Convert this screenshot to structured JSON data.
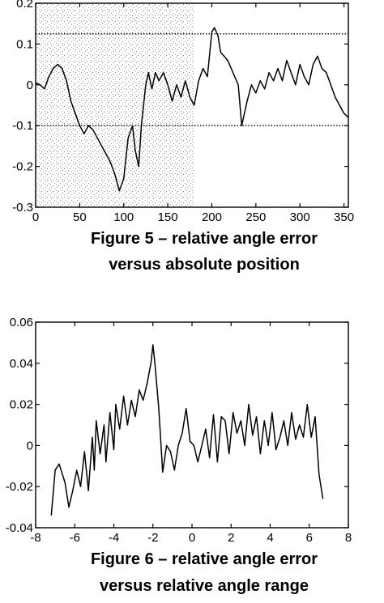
{
  "chart_data": [
    {
      "type": "line",
      "title": "Figure 5 – relative angle error",
      "subtitle": "versus absolute position",
      "xlabel": "",
      "ylabel": "",
      "xlim": [
        0,
        355
      ],
      "ylim": [
        -0.3,
        0.2
      ],
      "xticks": [
        0,
        50,
        100,
        150,
        200,
        250,
        300,
        350
      ],
      "yticks": [
        0.2,
        0.1,
        0,
        -0.1,
        -0.2,
        -0.3
      ],
      "xtick_labels": [
        "0",
        "50",
        "100",
        "150",
        "200",
        "250",
        "300",
        "350"
      ],
      "ytick_labels": [
        "0.2",
        "0.1",
        "0",
        "-0.1",
        "-0.2",
        "-0.3"
      ],
      "shaded_region": [
        0,
        180
      ],
      "reference_lines": [
        0.125,
        -0.1
      ],
      "grid": false,
      "series": [
        {
          "x": [
            0,
            5,
            10,
            15,
            20,
            25,
            30,
            35,
            40,
            45,
            50,
            55,
            60,
            65,
            70,
            75,
            80,
            85,
            90,
            95,
            100,
            105,
            110,
            113,
            117,
            120,
            125,
            128,
            132,
            136,
            140,
            145,
            150,
            155,
            160,
            165,
            170,
            175,
            180,
            185,
            190,
            195,
            200,
            203,
            207,
            210,
            214,
            218,
            222,
            226,
            230,
            234,
            240,
            245,
            250,
            255,
            260,
            265,
            270,
            275,
            280,
            285,
            290,
            295,
            300,
            305,
            310,
            315,
            320,
            325,
            330,
            335,
            340,
            345,
            350,
            355
          ],
          "values": [
            0.005,
            0.0,
            -0.01,
            0.02,
            0.04,
            0.05,
            0.04,
            0.01,
            -0.04,
            -0.07,
            -0.1,
            -0.12,
            -0.1,
            -0.11,
            -0.13,
            -0.15,
            -0.17,
            -0.19,
            -0.22,
            -0.26,
            -0.23,
            -0.13,
            -0.1,
            -0.16,
            -0.2,
            -0.1,
            0.0,
            0.03,
            -0.01,
            0.03,
            0.01,
            0.03,
            0.0,
            -0.04,
            0.0,
            -0.03,
            0.01,
            -0.03,
            -0.05,
            0.01,
            0.04,
            0.02,
            0.13,
            0.14,
            0.12,
            0.08,
            0.07,
            0.06,
            0.04,
            0.02,
            0.0,
            -0.1,
            -0.04,
            0.0,
            -0.02,
            0.01,
            -0.01,
            0.03,
            0.01,
            0.04,
            0.01,
            0.06,
            0.03,
            0.0,
            0.05,
            0.02,
            0.0,
            0.05,
            0.07,
            0.04,
            0.03,
            0.0,
            -0.03,
            -0.05,
            -0.07,
            -0.08
          ]
        }
      ]
    },
    {
      "type": "line",
      "title": "Figure 6 – relative angle error",
      "subtitle": "versus relative angle range",
      "xlabel": "",
      "ylabel": "",
      "xlim": [
        -8,
        8
      ],
      "ylim": [
        -0.04,
        0.06
      ],
      "xticks": [
        -8,
        -6,
        -4,
        -2,
        0,
        2,
        4,
        6,
        8
      ],
      "yticks": [
        0.06,
        0.04,
        0.02,
        0,
        -0.02,
        -0.04
      ],
      "xtick_labels": [
        "-8",
        "-6",
        "-4",
        "-2",
        "0",
        "2",
        "4",
        "6",
        "8"
      ],
      "ytick_labels": [
        "0.06",
        "0.04",
        "0.02",
        "0",
        "-0.02",
        "-0.04"
      ],
      "grid": false,
      "series": [
        {
          "x": [
            -7.2,
            -7.0,
            -6.8,
            -6.5,
            -6.3,
            -6.1,
            -5.9,
            -5.7,
            -5.5,
            -5.3,
            -5.1,
            -5.0,
            -4.9,
            -4.7,
            -4.5,
            -4.4,
            -4.2,
            -4.0,
            -3.9,
            -3.7,
            -3.5,
            -3.3,
            -3.1,
            -2.9,
            -2.7,
            -2.5,
            -2.3,
            -2.1,
            -2.0,
            -1.9,
            -1.7,
            -1.5,
            -1.3,
            -1.1,
            -0.9,
            -0.7,
            -0.5,
            -0.3,
            -0.1,
            0.1,
            0.3,
            0.5,
            0.7,
            0.9,
            1.1,
            1.3,
            1.5,
            1.7,
            1.9,
            2.1,
            2.3,
            2.5,
            2.7,
            2.9,
            3.1,
            3.3,
            3.5,
            3.7,
            3.9,
            4.1,
            4.3,
            4.5,
            4.7,
            4.9,
            5.1,
            5.3,
            5.5,
            5.7,
            5.9,
            6.1,
            6.3,
            6.5,
            6.7
          ],
          "values": [
            -0.034,
            -0.012,
            -0.009,
            -0.018,
            -0.03,
            -0.022,
            -0.012,
            -0.02,
            -0.003,
            -0.022,
            0.004,
            -0.012,
            0.012,
            -0.004,
            0.01,
            -0.008,
            0.016,
            -0.002,
            0.02,
            0.008,
            0.024,
            0.01,
            0.022,
            0.014,
            0.027,
            0.022,
            0.03,
            0.04,
            0.049,
            0.04,
            0.018,
            -0.013,
            0.0,
            -0.003,
            -0.012,
            0.0,
            0.006,
            0.018,
            0.002,
            0.0,
            -0.008,
            0.0,
            0.008,
            -0.006,
            0.015,
            -0.008,
            0.014,
            0.012,
            -0.004,
            0.016,
            0.006,
            0.012,
            0.0,
            0.02,
            0.005,
            0.014,
            -0.004,
            0.012,
            0.0,
            0.016,
            -0.002,
            0.004,
            0.012,
            0.0,
            0.016,
            0.003,
            0.01,
            0.004,
            0.02,
            0.004,
            0.014,
            -0.014,
            -0.026
          ]
        }
      ]
    }
  ]
}
